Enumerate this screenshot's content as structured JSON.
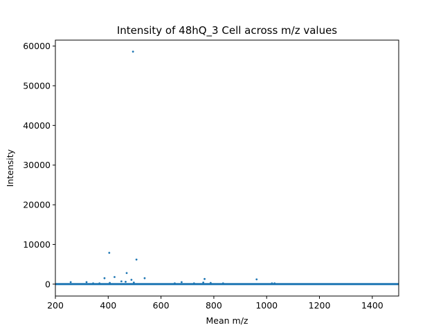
{
  "chart_data": {
    "type": "scatter",
    "title": "Intensity of 48hQ_3 Cell across m/z values",
    "xlabel": "Mean m/z",
    "ylabel": "Intensity",
    "xlim": [
      200,
      1500
    ],
    "ylim": [
      -3000,
      61500
    ],
    "xticks": [
      200,
      400,
      600,
      800,
      1000,
      1200,
      1400
    ],
    "yticks": [
      0,
      10000,
      20000,
      30000,
      40000,
      50000,
      60000
    ],
    "grid": false,
    "legend": "none",
    "color": "#1f77b4",
    "baseline": {
      "x_start": 200,
      "x_end": 1500,
      "value": 0
    },
    "x": [
      258,
      318,
      343,
      367,
      386,
      404,
      406,
      424,
      450,
      466,
      470,
      488,
      494,
      497,
      507,
      538,
      652,
      678,
      725,
      760,
      765,
      788,
      835,
      962,
      1020,
      1030
    ],
    "y": [
      500,
      500,
      200,
      200,
      1500,
      7900,
      300,
      1800,
      700,
      600,
      2800,
      1100,
      58600,
      400,
      6200,
      1500,
      200,
      500,
      200,
      400,
      1300,
      300,
      200,
      1200,
      200,
      200
    ]
  }
}
